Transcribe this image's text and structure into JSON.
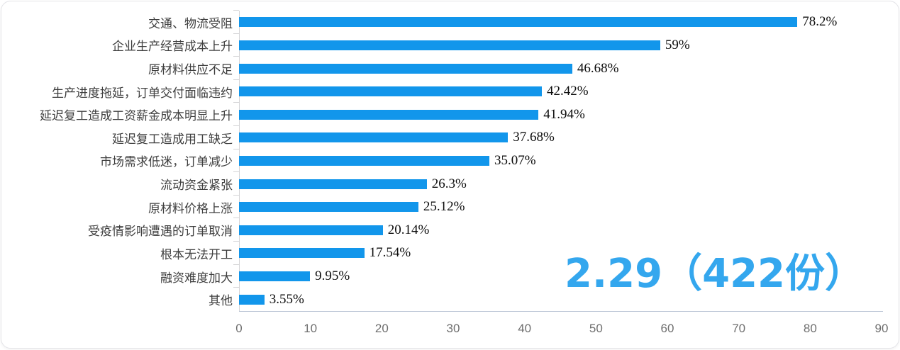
{
  "chart_data": {
    "type": "bar",
    "orientation": "horizontal",
    "categories": [
      "交通、物流受阻",
      "企业生产经营成本上升",
      "原材料供应不足",
      "生产进度拖延，订单交付面临违约",
      "延迟复工造成工资薪金成本明显上升",
      "延迟复工造成用工缺乏",
      "市场需求低迷，订单减少",
      "流动资金紧张",
      "原材料价格上涨",
      "受疫情影响遭遇的订单取消",
      "根本无法开工",
      "融资难度加大",
      "其他"
    ],
    "values": [
      78.2,
      59,
      46.68,
      42.42,
      41.94,
      37.68,
      35.07,
      26.3,
      25.12,
      20.14,
      17.54,
      9.95,
      3.55
    ],
    "value_labels": [
      "78.2%",
      "59%",
      "46.68%",
      "42.42%",
      "41.94%",
      "37.68%",
      "35.07%",
      "26.3%",
      "25.12%",
      "20.14%",
      "17.54%",
      "9.95%",
      "3.55%"
    ],
    "xlim": [
      0,
      90
    ],
    "x_ticks": [
      0,
      10,
      20,
      30,
      40,
      50,
      60,
      70,
      80,
      90
    ],
    "title": "",
    "xlabel": "",
    "ylabel": "",
    "grid": false,
    "legend": "none",
    "bar_color": "#1296eb",
    "annotation": "2.29（422份）",
    "annotation_color": "#34a7ee"
  }
}
